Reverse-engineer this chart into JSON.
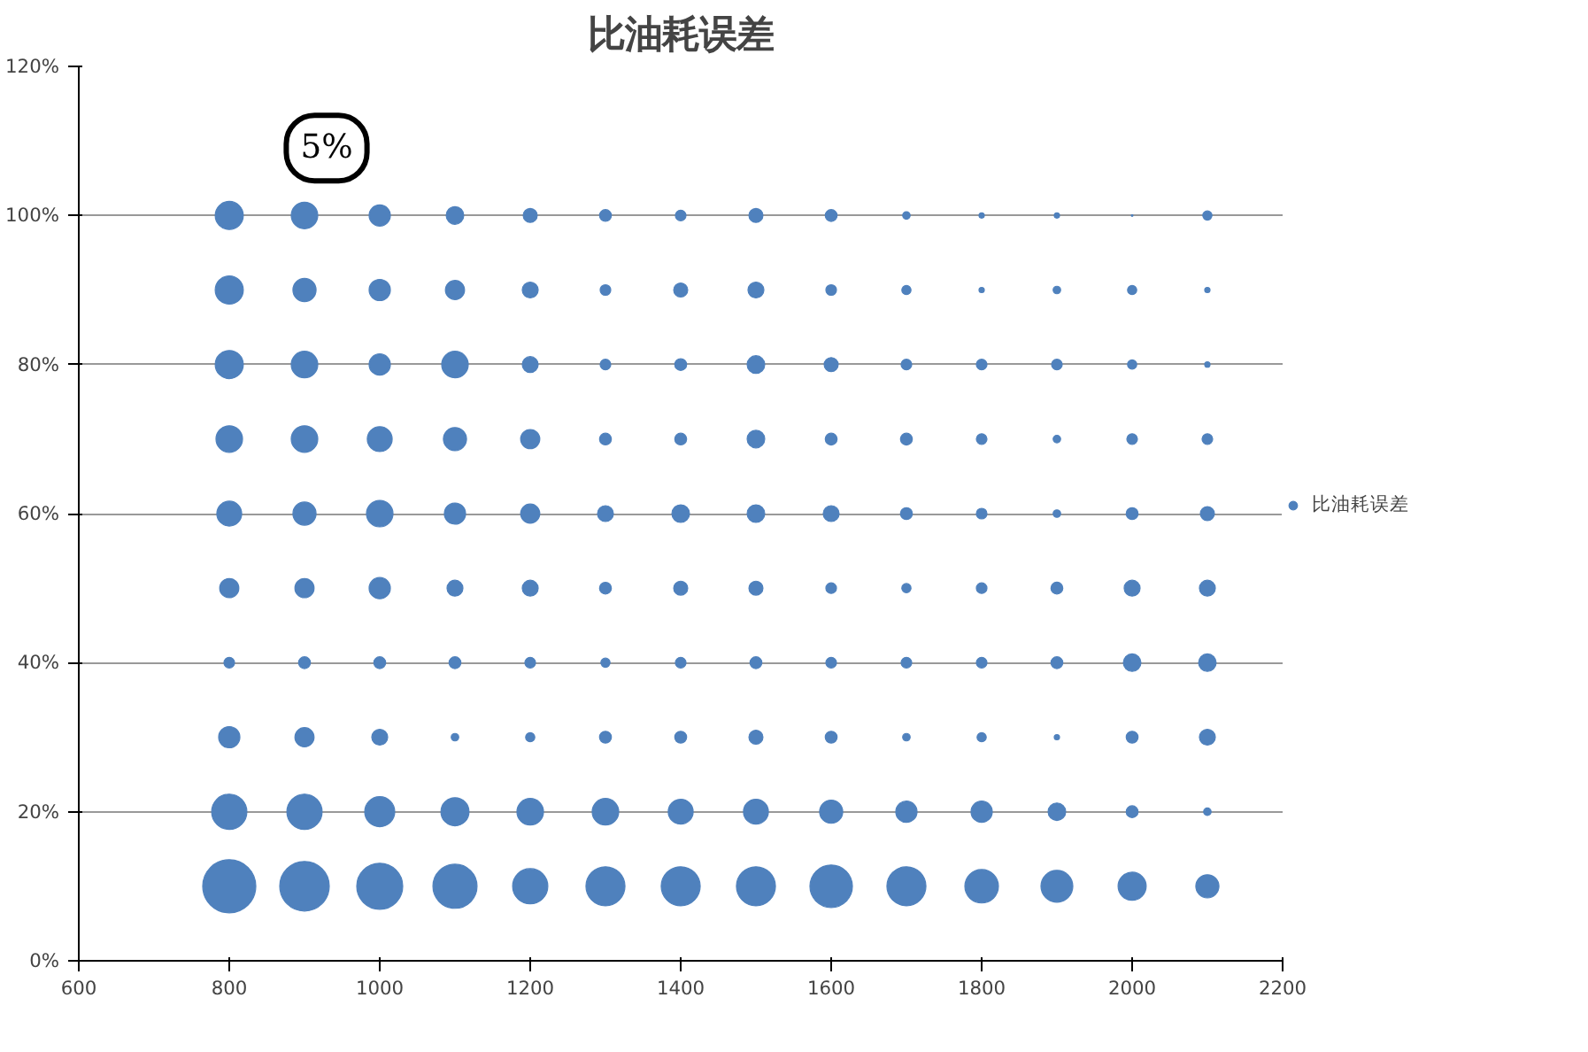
{
  "chart_data": {
    "type": "bubble",
    "title": "比油耗误差",
    "xlim": [
      600,
      2200
    ],
    "xticks": [
      600,
      800,
      1000,
      1200,
      1400,
      1600,
      1800,
      2000,
      2200
    ],
    "ylim": [
      0,
      120
    ],
    "yticks": [
      {
        "value": 0,
        "label": "0%"
      },
      {
        "value": 20,
        "label": "20%"
      },
      {
        "value": 40,
        "label": "40%"
      },
      {
        "value": 60,
        "label": "60%"
      },
      {
        "value": 80,
        "label": "80%"
      },
      {
        "value": 100,
        "label": "100%"
      },
      {
        "value": 120,
        "label": "120%"
      }
    ],
    "grid": "y",
    "legend": "right",
    "annotations": [
      {
        "text": "5%",
        "x": 800,
        "y": 100
      }
    ],
    "series": [
      {
        "name": "比油耗误差",
        "color": "#4f81bd",
        "x": [
          800,
          900,
          1000,
          1100,
          1200,
          1300,
          1400,
          1500,
          1600,
          1700,
          1800,
          1900,
          2000,
          2100,
          800,
          900,
          1000,
          1100,
          1200,
          1300,
          1400,
          1500,
          1600,
          1700,
          1800,
          1900,
          2000,
          2100,
          800,
          900,
          1000,
          1100,
          1200,
          1300,
          1400,
          1500,
          1600,
          1700,
          1800,
          1900,
          2000,
          2100,
          800,
          900,
          1000,
          1100,
          1200,
          1300,
          1400,
          1500,
          1600,
          1700,
          1800,
          1900,
          2000,
          2100,
          800,
          900,
          1000,
          1100,
          1200,
          1300,
          1400,
          1500,
          1600,
          1700,
          1800,
          1900,
          2000,
          2100,
          800,
          900,
          1000,
          1100,
          1200,
          1300,
          1400,
          1500,
          1600,
          1700,
          1800,
          1900,
          2000,
          2100,
          800,
          900,
          1000,
          1100,
          1200,
          1300,
          1400,
          1500,
          1600,
          1700,
          1800,
          1900,
          2000,
          2100,
          800,
          900,
          1000,
          1100,
          1200,
          1300,
          1400,
          1500,
          1600,
          1700,
          1800,
          1900,
          2000,
          2100,
          800,
          900,
          1000,
          1100,
          1200,
          1300,
          1400,
          1500,
          1600,
          1700,
          1800,
          1900,
          2000,
          2100,
          800,
          900,
          1000,
          1100,
          1200,
          1300,
          1400,
          1500,
          1600,
          1700,
          1800,
          1900,
          2000,
          2100
        ],
        "values": [
          10,
          10,
          10,
          10,
          10,
          10,
          10,
          10,
          10,
          10,
          10,
          10,
          10,
          10,
          20,
          20,
          20,
          20,
          20,
          20,
          20,
          20,
          20,
          20,
          20,
          20,
          20,
          20,
          30,
          30,
          30,
          30,
          30,
          30,
          30,
          30,
          30,
          30,
          30,
          30,
          30,
          30,
          40,
          40,
          40,
          40,
          40,
          40,
          40,
          40,
          40,
          40,
          40,
          40,
          40,
          40,
          50,
          50,
          50,
          50,
          50,
          50,
          50,
          50,
          50,
          50,
          50,
          50,
          50,
          50,
          60,
          60,
          60,
          60,
          60,
          60,
          60,
          60,
          60,
          60,
          60,
          60,
          60,
          60,
          70,
          70,
          70,
          70,
          70,
          70,
          70,
          70,
          70,
          70,
          70,
          70,
          70,
          70,
          80,
          80,
          80,
          80,
          80,
          80,
          80,
          80,
          80,
          80,
          80,
          80,
          80,
          80,
          90,
          90,
          90,
          90,
          90,
          90,
          90,
          90,
          90,
          90,
          90,
          90,
          90,
          90,
          100,
          100,
          100,
          100,
          100,
          100,
          100,
          100,
          100,
          100,
          100,
          100,
          100,
          100
        ],
        "sizes": [
          1,
          0.87,
          0.75,
          0.69,
          0.44,
          0.54,
          0.54,
          0.54,
          0.64,
          0.54,
          0.4,
          0.36,
          0.28,
          0.19,
          0.44,
          0.44,
          0.32,
          0.28,
          0.25,
          0.25,
          0.22,
          0.22,
          0.19,
          0.16,
          0.16,
          0.11,
          0.05,
          0.02,
          0.16,
          0.13,
          0.09,
          0.02,
          0.03,
          0.05,
          0.05,
          0.07,
          0.05,
          0.02,
          0.03,
          0.01,
          0.05,
          0.09,
          0.04,
          0.05,
          0.05,
          0.05,
          0.04,
          0.03,
          0.04,
          0.05,
          0.04,
          0.04,
          0.04,
          0.05,
          0.11,
          0.11,
          0.13,
          0.13,
          0.16,
          0.09,
          0.09,
          0.05,
          0.07,
          0.07,
          0.04,
          0.03,
          0.04,
          0.05,
          0.09,
          0.09,
          0.22,
          0.19,
          0.25,
          0.16,
          0.13,
          0.09,
          0.11,
          0.11,
          0.09,
          0.05,
          0.04,
          0.02,
          0.05,
          0.07,
          0.25,
          0.25,
          0.22,
          0.19,
          0.13,
          0.05,
          0.05,
          0.11,
          0.05,
          0.05,
          0.04,
          0.02,
          0.04,
          0.04,
          0.28,
          0.25,
          0.16,
          0.25,
          0.09,
          0.04,
          0.05,
          0.11,
          0.07,
          0.04,
          0.04,
          0.04,
          0.03,
          0.01,
          0.28,
          0.19,
          0.16,
          0.13,
          0.09,
          0.04,
          0.07,
          0.09,
          0.04,
          0.03,
          0.01,
          0.02,
          0.03,
          0.01,
          0.28,
          0.25,
          0.16,
          0.11,
          0.07,
          0.05,
          0.04,
          0.07,
          0.05,
          0.02,
          0.01,
          0.01,
          0.001,
          0.03
        ]
      }
    ]
  }
}
